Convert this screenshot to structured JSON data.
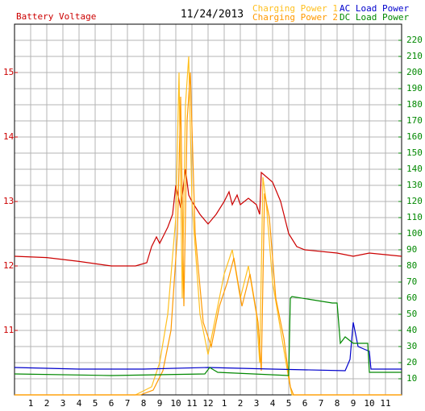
{
  "chart_data": {
    "type": "line",
    "title": "Battery Voltage",
    "subtitle": "11/24/2013",
    "xlim": [
      0,
      24
    ],
    "xticks": [
      {
        "value": 1,
        "label": "1"
      },
      {
        "value": 2,
        "label": "2"
      },
      {
        "value": 3,
        "label": "3"
      },
      {
        "value": 4,
        "label": "4"
      },
      {
        "value": 5,
        "label": "5"
      },
      {
        "value": 6,
        "label": "6"
      },
      {
        "value": 7,
        "label": "7"
      },
      {
        "value": 8,
        "label": "8"
      },
      {
        "value": 9,
        "label": "9"
      },
      {
        "value": 10,
        "label": "10"
      },
      {
        "value": 11,
        "label": "11"
      },
      {
        "value": 12,
        "label": "12"
      },
      {
        "value": 13,
        "label": "1"
      },
      {
        "value": 14,
        "label": "2"
      },
      {
        "value": 15,
        "label": "3"
      },
      {
        "value": 16,
        "label": "4"
      },
      {
        "value": 17,
        "label": "5"
      },
      {
        "value": 18,
        "label": "6"
      },
      {
        "value": 19,
        "label": "7"
      },
      {
        "value": 20,
        "label": "8"
      },
      {
        "value": 21,
        "label": "9"
      },
      {
        "value": 22,
        "label": "10"
      },
      {
        "value": 23,
        "label": "11"
      }
    ],
    "ylim": [
      10,
      15.75
    ],
    "yticks": [
      11,
      12,
      13,
      14,
      15
    ],
    "y2lim": [
      0,
      230
    ],
    "y2ticks": [
      10,
      20,
      30,
      40,
      50,
      60,
      70,
      80,
      90,
      100,
      110,
      120,
      130,
      140,
      150,
      160,
      170,
      180,
      190,
      200,
      210,
      220
    ],
    "grid": true,
    "series": [
      {
        "name": "Battery Voltage",
        "color": "#cc0000",
        "axis": "y",
        "x": [
          0,
          2,
          4,
          6,
          7.5,
          8.2,
          8.5,
          8.8,
          9,
          9.3,
          9.5,
          9.8,
          10,
          10.3,
          10.6,
          10.8,
          11,
          11.5,
          12,
          12.5,
          13,
          13.3,
          13.5,
          13.8,
          14,
          14.5,
          15,
          15.2,
          15.3,
          16,
          16.5,
          17,
          17.5,
          18,
          20,
          21,
          22,
          24
        ],
        "values": [
          12.15,
          12.13,
          12.07,
          12.0,
          12.0,
          12.05,
          12.3,
          12.45,
          12.35,
          12.5,
          12.6,
          12.8,
          13.25,
          12.9,
          13.5,
          13.1,
          13.0,
          12.8,
          12.65,
          12.8,
          13.0,
          13.15,
          12.95,
          13.1,
          12.95,
          13.05,
          12.95,
          12.8,
          13.45,
          13.3,
          13.0,
          12.5,
          12.3,
          12.25,
          12.2,
          12.15,
          12.2,
          12.15
        ]
      },
      {
        "name": "Charging Power 1",
        "color": "#ffc020",
        "axis": "y2",
        "x": [
          0,
          7.5,
          8.5,
          9,
          9.5,
          10,
          10.2,
          10.4,
          10.6,
          10.8,
          11,
          11.5,
          12,
          12.5,
          13,
          13.5,
          14,
          14.5,
          15,
          15.2,
          15.4,
          15.6,
          16,
          16.5,
          17,
          17.2,
          24
        ],
        "values": [
          0,
          0,
          5,
          20,
          50,
          110,
          200,
          60,
          180,
          210,
          120,
          50,
          25,
          50,
          75,
          90,
          60,
          80,
          50,
          20,
          135,
          120,
          70,
          40,
          10,
          0,
          0
        ]
      },
      {
        "name": "Charging Power 2",
        "color": "#ff9900",
        "axis": "y2",
        "x": [
          0,
          7.8,
          8.6,
          9.2,
          9.7,
          10.1,
          10.3,
          10.5,
          10.7,
          10.9,
          11.2,
          11.7,
          12.2,
          12.7,
          13.2,
          13.6,
          14.1,
          14.6,
          15.1,
          15.3,
          15.5,
          15.8,
          16.2,
          16.7,
          17.1,
          17.3,
          24
        ],
        "values": [
          0,
          0,
          3,
          15,
          40,
          100,
          185,
          55,
          170,
          200,
          100,
          45,
          30,
          55,
          70,
          85,
          55,
          75,
          45,
          15,
          125,
          110,
          60,
          35,
          5,
          0,
          0
        ]
      },
      {
        "name": "AC Load Power",
        "color": "#0000cc",
        "axis": "y2",
        "x": [
          0,
          4,
          8,
          12,
          16,
          20.5,
          20.8,
          21,
          21.3,
          22,
          22.1,
          24
        ],
        "values": [
          17,
          16,
          16,
          17,
          16,
          15,
          22,
          45,
          30,
          27,
          16,
          16
        ]
      },
      {
        "name": "DC Load Power",
        "color": "#008800",
        "axis": "y2",
        "x": [
          0,
          6,
          11.8,
          12.1,
          12.6,
          17,
          17.1,
          17.2,
          19.7,
          20,
          20.2,
          20.5,
          21,
          21.9,
          22,
          24
        ],
        "values": [
          13,
          12,
          13,
          17,
          14,
          12,
          60,
          61,
          57,
          57,
          32,
          36,
          32,
          32,
          14,
          14
        ]
      }
    ]
  }
}
